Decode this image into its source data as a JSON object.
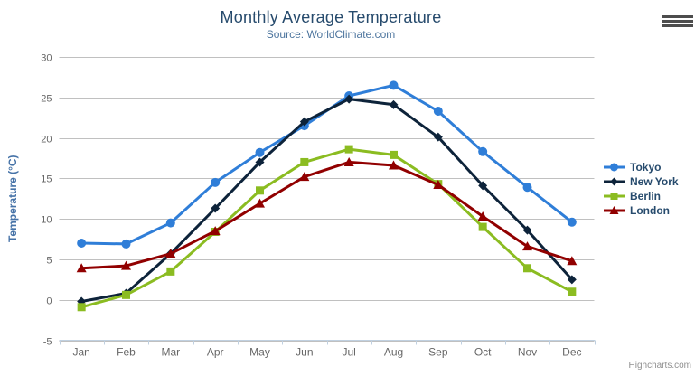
{
  "header": {
    "title": "Monthly Average Temperature",
    "subtitle": "Source: WorldClimate.com"
  },
  "toolbar": {
    "menu_icon": "hamburger-icon"
  },
  "credits": {
    "label": "Highcharts.com"
  },
  "chart_data": {
    "type": "line",
    "title": "Monthly Average Temperature",
    "subtitle": "Source: WorldClimate.com",
    "categories": [
      "Jan",
      "Feb",
      "Mar",
      "Apr",
      "May",
      "Jun",
      "Jul",
      "Aug",
      "Sep",
      "Oct",
      "Nov",
      "Dec"
    ],
    "xlabel": "",
    "ylabel": "Temperature (°C)",
    "ylim": [
      -5,
      30
    ],
    "yticks": [
      -5,
      0,
      5,
      10,
      15,
      20,
      25,
      30
    ],
    "grid": true,
    "legend_position": "right",
    "colors": {
      "grid_line": "#c0c0c0",
      "axis_line": "#c0d0e0",
      "tick_label": "#666666",
      "axis_title": "#4572a7",
      "title": "#274b6d",
      "subtitle": "#4d759e",
      "legend_text": "#274b6d"
    },
    "series": [
      {
        "name": "Tokyo",
        "color": "#2f7ed8",
        "marker": "circle",
        "values": [
          7.0,
          6.9,
          9.5,
          14.5,
          18.2,
          21.5,
          25.2,
          26.5,
          23.3,
          18.3,
          13.9,
          9.6
        ]
      },
      {
        "name": "New York",
        "color": "#0d233a",
        "marker": "diamond",
        "values": [
          -0.2,
          0.8,
          5.7,
          11.3,
          17.0,
          22.0,
          24.8,
          24.1,
          20.1,
          14.1,
          8.6,
          2.5
        ]
      },
      {
        "name": "Berlin",
        "color": "#8bbc21",
        "marker": "square",
        "values": [
          -0.9,
          0.6,
          3.5,
          8.4,
          13.5,
          17.0,
          18.6,
          17.9,
          14.3,
          9.0,
          3.9,
          1.0
        ]
      },
      {
        "name": "London",
        "color": "#910000",
        "marker": "triangle",
        "values": [
          3.9,
          4.2,
          5.7,
          8.5,
          11.9,
          15.2,
          17.0,
          16.6,
          14.2,
          10.3,
          6.6,
          4.8
        ]
      }
    ]
  }
}
